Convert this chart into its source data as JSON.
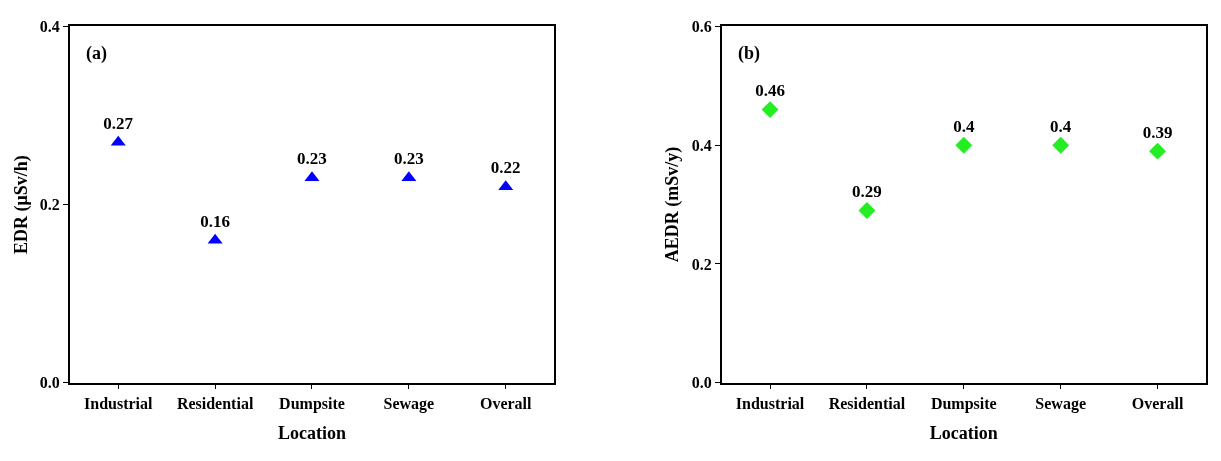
{
  "chart_data": [
    {
      "type": "scatter",
      "xlabel": "Location",
      "ylabel": "EDR (μSv/h)",
      "annotations": [
        "(a)"
      ],
      "categories": [
        "Industrial",
        "Residential",
        "Dumpsite",
        "Sewage",
        "Overall"
      ],
      "series": [
        {
          "color": "#0000ff",
          "values": [
            0.27,
            0.16,
            0.23,
            0.23,
            0.22
          ]
        }
      ],
      "ylim": [
        0,
        0.4
      ],
      "yticks": [
        {
          "value": 0,
          "label": "0.0"
        },
        0.2,
        0.4
      ],
      "marker": "triangle",
      "data_labels": true
    },
    {
      "type": "scatter",
      "xlabel": "Location",
      "ylabel": "AEDR (mSv/y)",
      "annotations": [
        "(b)"
      ],
      "categories": [
        "Industrial",
        "Residential",
        "Dumpsite",
        "Sewage",
        "Overall"
      ],
      "series": [
        {
          "color": "#22ee22",
          "values": [
            0.46,
            0.29,
            0.4,
            0.4,
            0.39
          ]
        }
      ],
      "ylim": [
        0,
        0.6
      ],
      "yticks": [
        {
          "value": 0,
          "label": "0.0"
        },
        0.2,
        0.4,
        0.6
      ],
      "marker": "diamond",
      "data_labels": true
    }
  ]
}
